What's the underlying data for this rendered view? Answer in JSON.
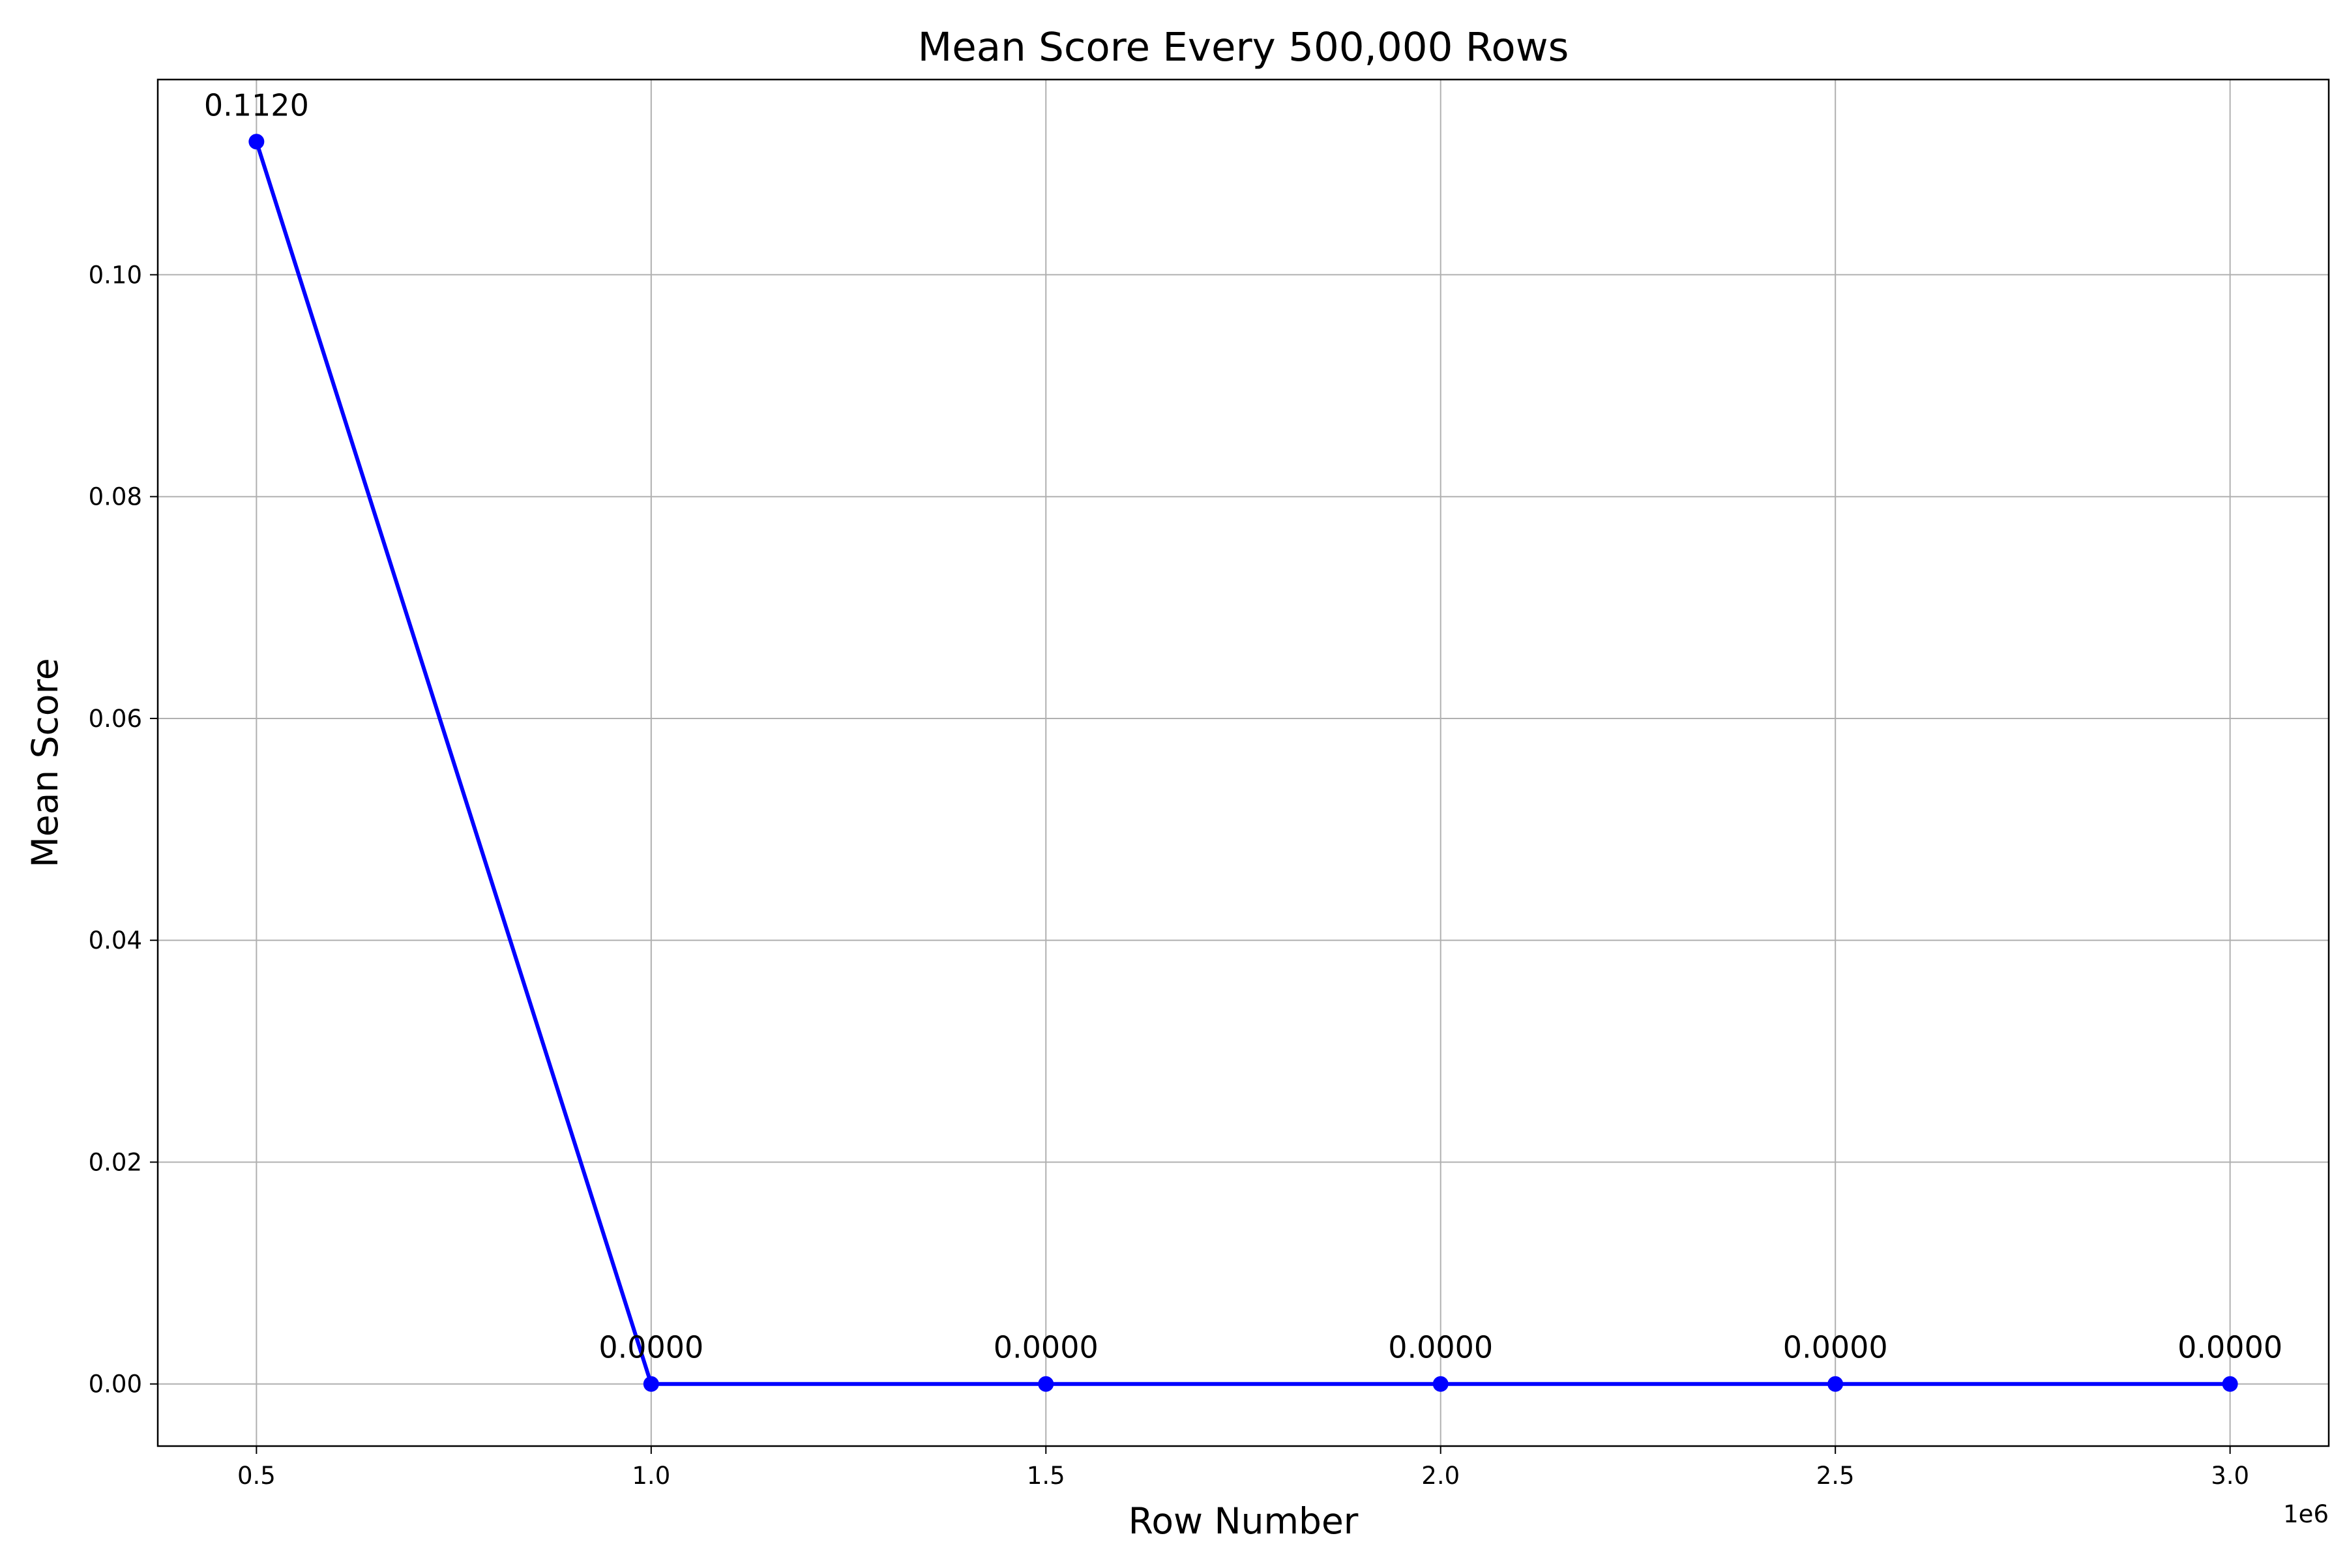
{
  "chart_data": {
    "type": "line",
    "title": "Mean Score Every 500,000 Rows",
    "xlabel": "Row Number",
    "ylabel": "Mean Score",
    "x_offset_label": "1e6",
    "x": [
      500000,
      1000000,
      1500000,
      2000000,
      2500000,
      3000000
    ],
    "series": [
      {
        "values": [
          0.112,
          0.0,
          0.0,
          0.0,
          0.0,
          0.0
        ],
        "data_labels": [
          "0.1120",
          "0.0000",
          "0.0000",
          "0.0000",
          "0.0000",
          "0.0000"
        ],
        "color": "#0000ff",
        "marker": "circle"
      }
    ],
    "xticks": [
      {
        "value": 500000,
        "label": "0.5"
      },
      {
        "value": 1000000,
        "label": "1.0"
      },
      {
        "value": 1500000,
        "label": "1.5"
      },
      {
        "value": 2000000,
        "label": "2.0"
      },
      {
        "value": 2500000,
        "label": "2.5"
      },
      {
        "value": 3000000,
        "label": "3.0"
      }
    ],
    "yticks": [
      {
        "value": 0.0,
        "label": "0.00"
      },
      {
        "value": 0.02,
        "label": "0.02"
      },
      {
        "value": 0.04,
        "label": "0.04"
      },
      {
        "value": 0.06,
        "label": "0.06"
      },
      {
        "value": 0.08,
        "label": "0.08"
      },
      {
        "value": 0.1,
        "label": "0.10"
      }
    ],
    "xlim": [
      375000,
      3125000
    ],
    "ylim": [
      -0.0056,
      0.1176
    ],
    "grid": true,
    "grid_color": "#b0b0b0",
    "axis_color": "#000000"
  }
}
